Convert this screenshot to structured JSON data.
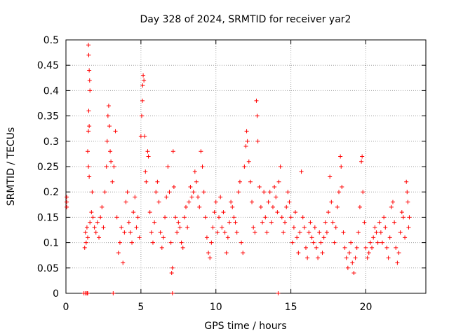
{
  "chart_data": {
    "type": "scatter",
    "title": "Day 328 of 2024, SRMTID for receiver yar2",
    "xlabel": "GPS time / hours",
    "ylabel": "SRMTID / TECUs",
    "xlim": [
      0,
      24
    ],
    "ylim": [
      0,
      0.5
    ],
    "xticks": [
      0,
      5,
      10,
      15,
      20
    ],
    "yticks": [
      0,
      0.05,
      0.1,
      0.15,
      0.2,
      0.25,
      0.3,
      0.35,
      0.4,
      0.45,
      0.5
    ],
    "xtick_labels": [
      "0",
      "5",
      "10",
      "15",
      "20"
    ],
    "ytick_labels": [
      "0",
      "0.05",
      "0.1",
      "0.15",
      "0.2",
      "0.25",
      "0.3",
      "0.35",
      "0.4",
      "0.45",
      "0.5"
    ],
    "grid": true,
    "marker": "+",
    "color": "#ff0000",
    "series": [
      {
        "name": "SRMTID",
        "points": [
          [
            0.05,
            0.19
          ],
          [
            0.05,
            0.17
          ],
          [
            0.05,
            0.18
          ],
          [
            1.2,
            0.0
          ],
          [
            1.3,
            0.0
          ],
          [
            1.4,
            0.0
          ],
          [
            1.45,
            0.0
          ],
          [
            3.15,
            0.0
          ],
          [
            7.1,
            0.0
          ],
          [
            14.15,
            0.0
          ],
          [
            1.25,
            0.09
          ],
          [
            1.3,
            0.12
          ],
          [
            1.35,
            0.1
          ],
          [
            1.4,
            0.13
          ],
          [
            1.45,
            0.11
          ],
          [
            1.5,
            0.49
          ],
          [
            1.52,
            0.47
          ],
          [
            1.55,
            0.44
          ],
          [
            1.58,
            0.42
          ],
          [
            1.6,
            0.4
          ],
          [
            1.52,
            0.36
          ],
          [
            1.55,
            0.33
          ],
          [
            1.5,
            0.32
          ],
          [
            1.45,
            0.28
          ],
          [
            1.5,
            0.25
          ],
          [
            1.55,
            0.23
          ],
          [
            1.6,
            0.14
          ],
          [
            1.7,
            0.16
          ],
          [
            1.75,
            0.2
          ],
          [
            1.8,
            0.15
          ],
          [
            1.9,
            0.13
          ],
          [
            2.0,
            0.12
          ],
          [
            2.1,
            0.14
          ],
          [
            2.2,
            0.11
          ],
          [
            2.3,
            0.15
          ],
          [
            2.4,
            0.17
          ],
          [
            2.5,
            0.13
          ],
          [
            2.6,
            0.2
          ],
          [
            2.7,
            0.25
          ],
          [
            2.75,
            0.3
          ],
          [
            2.8,
            0.35
          ],
          [
            2.85,
            0.37
          ],
          [
            2.9,
            0.33
          ],
          [
            2.95,
            0.28
          ],
          [
            3.0,
            0.26
          ],
          [
            3.1,
            0.22
          ],
          [
            3.2,
            0.25
          ],
          [
            3.3,
            0.32
          ],
          [
            3.4,
            0.15
          ],
          [
            3.5,
            0.08
          ],
          [
            3.6,
            0.1
          ],
          [
            3.7,
            0.13
          ],
          [
            3.8,
            0.06
          ],
          [
            3.9,
            0.12
          ],
          [
            4.0,
            0.18
          ],
          [
            4.1,
            0.2
          ],
          [
            4.2,
            0.14
          ],
          [
            4.3,
            0.12
          ],
          [
            4.4,
            0.1
          ],
          [
            4.5,
            0.16
          ],
          [
            4.6,
            0.19
          ],
          [
            4.7,
            0.13
          ],
          [
            4.8,
            0.15
          ],
          [
            4.9,
            0.11
          ],
          [
            5.0,
            0.31
          ],
          [
            5.05,
            0.35
          ],
          [
            5.1,
            0.38
          ],
          [
            5.12,
            0.41
          ],
          [
            5.15,
            0.43
          ],
          [
            5.2,
            0.42
          ],
          [
            5.25,
            0.31
          ],
          [
            5.3,
            0.24
          ],
          [
            5.35,
            0.22
          ],
          [
            5.45,
            0.28
          ],
          [
            5.5,
            0.27
          ],
          [
            5.6,
            0.16
          ],
          [
            5.7,
            0.12
          ],
          [
            5.8,
            0.1
          ],
          [
            5.9,
            0.14
          ],
          [
            6.0,
            0.2
          ],
          [
            6.1,
            0.22
          ],
          [
            6.2,
            0.18
          ],
          [
            6.3,
            0.12
          ],
          [
            6.4,
            0.09
          ],
          [
            6.5,
            0.11
          ],
          [
            6.6,
            0.15
          ],
          [
            6.7,
            0.19
          ],
          [
            6.8,
            0.25
          ],
          [
            6.9,
            0.2
          ],
          [
            7.0,
            0.1
          ],
          [
            7.05,
            0.04
          ],
          [
            7.1,
            0.05
          ],
          [
            7.15,
            0.28
          ],
          [
            7.2,
            0.21
          ],
          [
            7.3,
            0.15
          ],
          [
            7.4,
            0.12
          ],
          [
            7.5,
            0.14
          ],
          [
            7.6,
            0.13
          ],
          [
            7.7,
            0.1
          ],
          [
            7.8,
            0.09
          ],
          [
            7.9,
            0.15
          ],
          [
            8.0,
            0.17
          ],
          [
            8.1,
            0.13
          ],
          [
            8.2,
            0.18
          ],
          [
            8.3,
            0.21
          ],
          [
            8.4,
            0.19
          ],
          [
            8.5,
            0.2
          ],
          [
            8.6,
            0.24
          ],
          [
            8.7,
            0.22
          ],
          [
            8.8,
            0.19
          ],
          [
            8.9,
            0.17
          ],
          [
            9.0,
            0.28
          ],
          [
            9.1,
            0.25
          ],
          [
            9.2,
            0.2
          ],
          [
            9.3,
            0.15
          ],
          [
            9.4,
            0.11
          ],
          [
            9.5,
            0.08
          ],
          [
            9.6,
            0.07
          ],
          [
            9.7,
            0.1
          ],
          [
            9.8,
            0.13
          ],
          [
            9.9,
            0.16
          ],
          [
            10.0,
            0.18
          ],
          [
            10.1,
            0.12
          ],
          [
            10.2,
            0.15
          ],
          [
            10.3,
            0.19
          ],
          [
            10.4,
            0.13
          ],
          [
            10.5,
            0.16
          ],
          [
            10.6,
            0.12
          ],
          [
            10.7,
            0.08
          ],
          [
            10.8,
            0.11
          ],
          [
            10.9,
            0.14
          ],
          [
            11.0,
            0.18
          ],
          [
            11.1,
            0.17
          ],
          [
            11.2,
            0.15
          ],
          [
            11.3,
            0.14
          ],
          [
            11.4,
            0.12
          ],
          [
            11.5,
            0.2
          ],
          [
            11.6,
            0.22
          ],
          [
            11.7,
            0.1
          ],
          [
            11.8,
            0.08
          ],
          [
            11.9,
            0.25
          ],
          [
            12.0,
            0.29
          ],
          [
            12.05,
            0.32
          ],
          [
            12.1,
            0.3
          ],
          [
            12.2,
            0.26
          ],
          [
            12.3,
            0.22
          ],
          [
            12.4,
            0.18
          ],
          [
            12.5,
            0.13
          ],
          [
            12.6,
            0.12
          ],
          [
            12.7,
            0.38
          ],
          [
            12.75,
            0.35
          ],
          [
            12.8,
            0.3
          ],
          [
            12.9,
            0.21
          ],
          [
            13.0,
            0.17
          ],
          [
            13.1,
            0.14
          ],
          [
            13.2,
            0.2
          ],
          [
            13.3,
            0.15
          ],
          [
            13.4,
            0.12
          ],
          [
            13.5,
            0.18
          ],
          [
            13.6,
            0.2
          ],
          [
            13.7,
            0.14
          ],
          [
            13.8,
            0.17
          ],
          [
            13.9,
            0.21
          ],
          [
            14.0,
            0.19
          ],
          [
            14.1,
            0.16
          ],
          [
            14.2,
            0.22
          ],
          [
            14.3,
            0.25
          ],
          [
            14.4,
            0.15
          ],
          [
            14.5,
            0.12
          ],
          [
            14.6,
            0.14
          ],
          [
            14.7,
            0.17
          ],
          [
            14.8,
            0.2
          ],
          [
            14.9,
            0.18
          ],
          [
            15.0,
            0.15
          ],
          [
            15.1,
            0.1
          ],
          [
            15.2,
            0.13
          ],
          [
            15.3,
            0.16
          ],
          [
            15.4,
            0.11
          ],
          [
            15.5,
            0.08
          ],
          [
            15.6,
            0.12
          ],
          [
            15.7,
            0.24
          ],
          [
            15.8,
            0.15
          ],
          [
            15.9,
            0.13
          ],
          [
            16.0,
            0.09
          ],
          [
            16.1,
            0.07
          ],
          [
            16.2,
            0.12
          ],
          [
            16.3,
            0.14
          ],
          [
            16.4,
            0.11
          ],
          [
            16.5,
            0.1
          ],
          [
            16.6,
            0.13
          ],
          [
            16.7,
            0.09
          ],
          [
            16.8,
            0.07
          ],
          [
            16.9,
            0.12
          ],
          [
            17.0,
            0.1
          ],
          [
            17.1,
            0.08
          ],
          [
            17.2,
            0.11
          ],
          [
            17.3,
            0.14
          ],
          [
            17.4,
            0.12
          ],
          [
            17.5,
            0.16
          ],
          [
            17.6,
            0.23
          ],
          [
            17.7,
            0.18
          ],
          [
            17.8,
            0.14
          ],
          [
            17.9,
            0.1
          ],
          [
            18.0,
            0.13
          ],
          [
            18.1,
            0.17
          ],
          [
            18.2,
            0.2
          ],
          [
            18.3,
            0.27
          ],
          [
            18.35,
            0.25
          ],
          [
            18.4,
            0.21
          ],
          [
            18.5,
            0.12
          ],
          [
            18.6,
            0.09
          ],
          [
            18.7,
            0.07
          ],
          [
            18.8,
            0.05
          ],
          [
            18.9,
            0.08
          ],
          [
            19.0,
            0.1
          ],
          [
            19.1,
            0.06
          ],
          [
            19.2,
            0.04
          ],
          [
            19.3,
            0.07
          ],
          [
            19.4,
            0.09
          ],
          [
            19.5,
            0.12
          ],
          [
            19.6,
            0.17
          ],
          [
            19.7,
            0.26
          ],
          [
            19.75,
            0.27
          ],
          [
            19.8,
            0.2
          ],
          [
            19.9,
            0.14
          ],
          [
            20.0,
            0.09
          ],
          [
            20.1,
            0.07
          ],
          [
            20.2,
            0.08
          ],
          [
            20.3,
            0.1
          ],
          [
            20.4,
            0.09
          ],
          [
            20.5,
            0.11
          ],
          [
            20.6,
            0.13
          ],
          [
            20.7,
            0.12
          ],
          [
            20.8,
            0.1
          ],
          [
            20.9,
            0.14
          ],
          [
            21.0,
            0.12
          ],
          [
            21.1,
            0.1
          ],
          [
            21.2,
            0.15
          ],
          [
            21.3,
            0.13
          ],
          [
            21.4,
            0.09
          ],
          [
            21.5,
            0.07
          ],
          [
            21.6,
            0.11
          ],
          [
            21.7,
            0.17
          ],
          [
            21.8,
            0.18
          ],
          [
            21.9,
            0.14
          ],
          [
            22.0,
            0.09
          ],
          [
            22.1,
            0.06
          ],
          [
            22.2,
            0.08
          ],
          [
            22.3,
            0.12
          ],
          [
            22.4,
            0.16
          ],
          [
            22.5,
            0.15
          ],
          [
            22.6,
            0.11
          ],
          [
            22.7,
            0.22
          ],
          [
            22.75,
            0.2
          ],
          [
            22.8,
            0.18
          ],
          [
            22.85,
            0.13
          ],
          [
            22.9,
            0.15
          ]
        ]
      }
    ]
  }
}
